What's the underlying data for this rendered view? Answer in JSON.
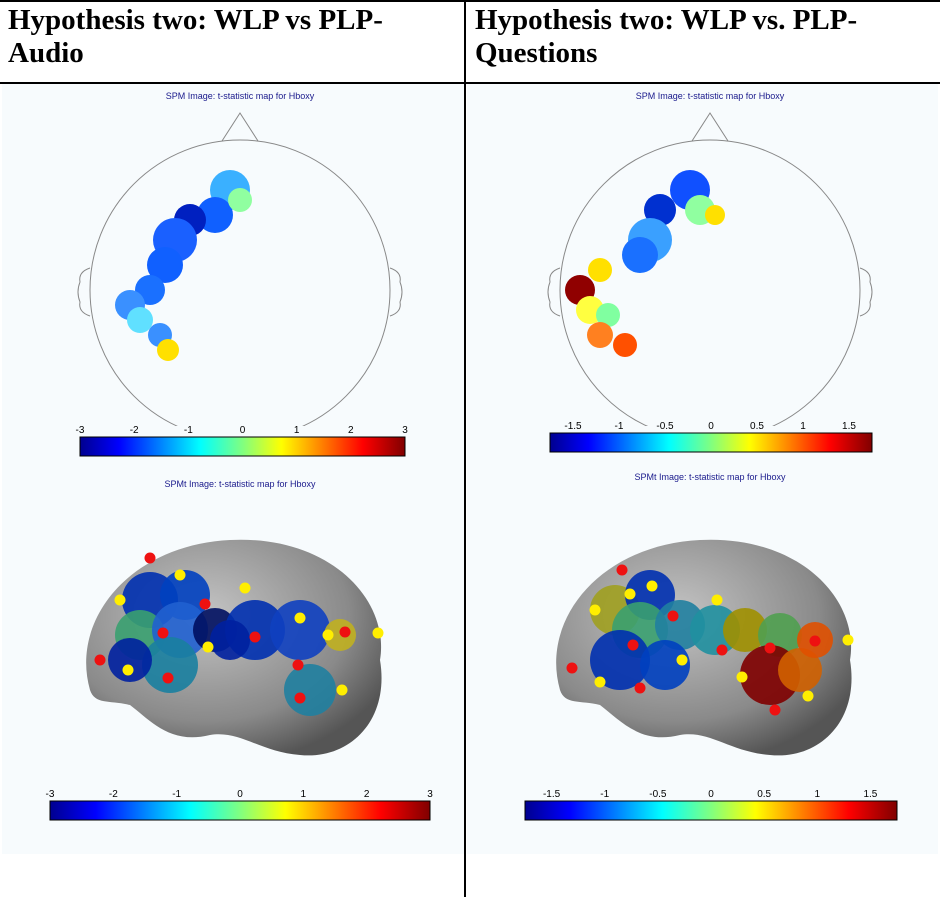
{
  "columns": [
    {
      "header": "Hypothesis two: WLP vs PLP-Audio",
      "top_map": {
        "title": "SPM Image: t-statistic map  for Hboxy",
        "colorbar_ticks": [
          "-3",
          "-2",
          "-1",
          "0",
          "1",
          "2",
          "3"
        ]
      },
      "bottom_map": {
        "title": "SPMt Image: t-statistic map  for Hboxy",
        "colorbar_ticks": [
          "-3",
          "-2",
          "-1",
          "0",
          "1",
          "2",
          "3"
        ]
      }
    },
    {
      "header": "Hypothesis two: WLP vs. PLP-Questions",
      "top_map": {
        "title": "SPM Image: t-statistic map  for Hboxy",
        "colorbar_ticks": [
          "-1.5",
          "-1",
          "-0.5",
          "0",
          "0.5",
          "1",
          "1.5"
        ]
      },
      "bottom_map": {
        "title": "SPMt Image: t-statistic map  for Hboxy",
        "colorbar_ticks": [
          "-1.5",
          "-1",
          "-0.5",
          "0",
          "0.5",
          "1",
          "1.5"
        ]
      }
    }
  ]
}
